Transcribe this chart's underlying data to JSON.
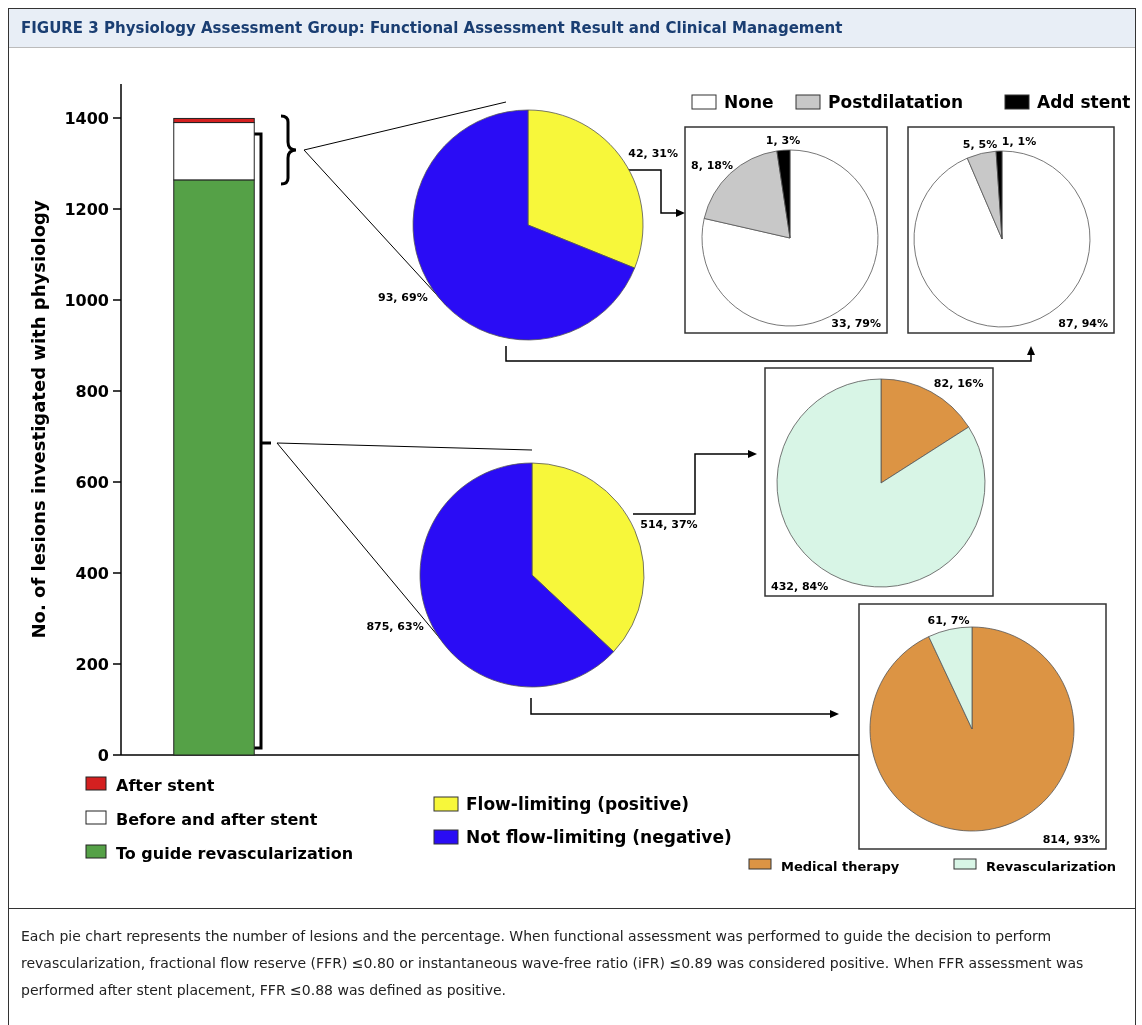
{
  "chart_data": [
    {
      "type": "bar",
      "title": "FIGURE 3 Physiology Assessment Group: Functional Assessment Result and Clinical Management",
      "ylabel": "No. of lesions investigated with physiology",
      "categories": [
        null
      ],
      "stacked": true,
      "legend": "bottom",
      "ylim": [
        0,
        1475
      ],
      "yticks": [
        0,
        200,
        400,
        600,
        800,
        1000,
        1200,
        1400
      ],
      "series": [
        {
          "name": "To guide revascularization",
          "color": "#55a147",
          "values": [
            1264
          ]
        },
        {
          "name": "Before and after stent",
          "color": "#ffffff",
          "values": [
            126
          ]
        },
        {
          "name": "After stent",
          "color": "#d42020",
          "values": [
            9
          ]
        }
      ],
      "annotations": [
        "Each pie chart represents the number of lesions and the percentage. When functional assessment was performed to guide the decision to perform revascularization, fractional flow reserve (FFR) ≤0.80 or instantaneous wave-free ratio (iFR) ≤0.89 was considered positive. When FFR assessment was performed after stent placement, FFR ≤0.88 was defined as positive."
      ]
    },
    {
      "type": "pie",
      "categories": [
        null,
        null
      ],
      "values": [
        42,
        93
      ],
      "colors": [
        "#f7f73a",
        "#2a0cf5"
      ],
      "value_labels": [
        "42, 31%",
        "93, 69%"
      ]
    },
    {
      "type": "pie",
      "categories": [
        "None",
        "Postdilatation",
        "Add stent"
      ],
      "values": [
        33,
        8,
        1
      ],
      "colors": [
        "#ffffff",
        "#c8c8c8",
        "#000000"
      ],
      "value_labels": [
        "33, 79%",
        "8, 18%",
        "1, 3%"
      ],
      "legend": "top"
    },
    {
      "type": "pie",
      "categories": [
        null,
        null,
        null
      ],
      "values": [
        87,
        5,
        1
      ],
      "colors": [
        "#ffffff",
        "#c8c8c8",
        "#000000"
      ],
      "value_labels": [
        "87, 94%",
        "5, 5%",
        "1, 1%"
      ]
    },
    {
      "type": "pie",
      "categories": [
        "Flow-limiting (positive)",
        "Not flow-limiting (negative)"
      ],
      "values": [
        514,
        875
      ],
      "colors": [
        "#f7f73a",
        "#2a0cf5"
      ],
      "value_labels": [
        "514, 37%",
        "875, 63%"
      ],
      "legend": "bottom"
    },
    {
      "type": "pie",
      "categories": [
        null,
        null
      ],
      "values": [
        82,
        432
      ],
      "colors": [
        "#dc9444",
        "#d8f5e6"
      ],
      "value_labels": [
        "82, 16%",
        "432, 84%"
      ]
    },
    {
      "type": "pie",
      "categories": [
        "Medical therapy",
        "Revascularization"
      ],
      "values": [
        814,
        61
      ],
      "colors": [
        "#dc9444",
        "#d8f5e6"
      ],
      "value_labels": [
        "814, 93%",
        "61, 7%"
      ],
      "legend": "bottom"
    }
  ]
}
